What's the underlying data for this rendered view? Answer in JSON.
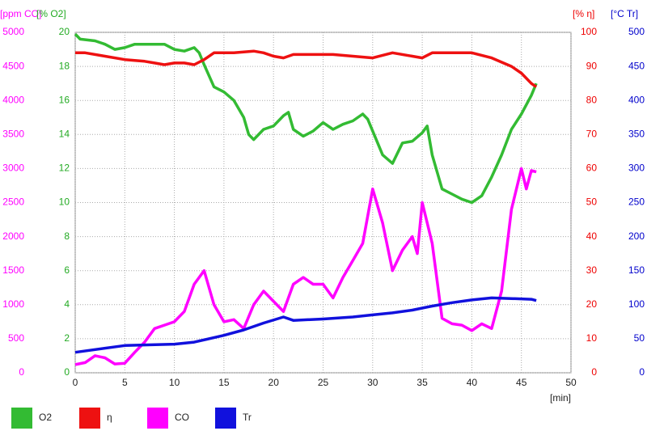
{
  "chart_data": {
    "type": "line",
    "xlabel": "[min]",
    "xlim": [
      0,
      50
    ],
    "xticks": [
      0,
      5,
      10,
      15,
      20,
      25,
      30,
      35,
      40,
      45,
      50
    ],
    "ylabel": "[ppm CO]",
    "ylim": [
      0,
      5000
    ],
    "yticks": [
      0,
      500,
      1000,
      1500,
      2000,
      2500,
      3000,
      3500,
      4000,
      4500,
      5000
    ],
    "ycolor": "#ff00ff",
    "y2label": "[% O2]",
    "y2lim": [
      0,
      20
    ],
    "y2ticks": [
      0,
      2,
      4,
      6,
      8,
      10,
      12,
      14,
      16,
      18,
      20
    ],
    "y2color": "#22aa22",
    "y3label": "[% η]",
    "y3lim": [
      0,
      100
    ],
    "y3ticks": [
      0,
      10,
      20,
      30,
      40,
      50,
      60,
      70,
      80,
      90,
      100
    ],
    "y3color": "#ee0000",
    "y4label": "[°C Tr]",
    "y4lim": [
      0,
      500
    ],
    "y4ticks": [
      0,
      50,
      100,
      150,
      200,
      250,
      300,
      350,
      400,
      450,
      500
    ],
    "y4color": "#0000cc",
    "grid": true,
    "series": [
      {
        "name": "O2",
        "color": "#33bb33",
        "axis": "y2",
        "x": [
          0,
          0.5,
          2,
          3,
          4,
          5,
          6,
          7,
          8,
          9,
          10,
          11,
          12,
          12.5,
          13,
          14,
          15,
          16,
          17,
          17.5,
          18,
          19,
          20,
          21,
          21.5,
          22,
          23,
          24,
          25,
          26,
          27,
          28,
          29,
          29.5,
          30,
          31,
          32,
          33,
          34,
          35,
          35.5,
          36,
          37,
          38,
          39,
          40,
          41,
          42,
          43,
          44,
          45,
          46,
          46.5
        ],
        "values": [
          19.9,
          19.6,
          19.5,
          19.3,
          19.0,
          19.1,
          19.3,
          19.3,
          19.3,
          19.3,
          19.0,
          18.9,
          19.1,
          18.8,
          18.1,
          16.8,
          16.5,
          16.0,
          15.0,
          14.0,
          13.7,
          14.3,
          14.5,
          15.1,
          15.3,
          14.3,
          13.9,
          14.2,
          14.7,
          14.3,
          14.6,
          14.8,
          15.2,
          14.9,
          14.2,
          12.8,
          12.3,
          13.5,
          13.6,
          14.1,
          14.5,
          12.8,
          10.8,
          10.5,
          10.2,
          10.0,
          10.4,
          11.5,
          12.8,
          14.3,
          15.2,
          16.3,
          17.0
        ]
      },
      {
        "name": "η",
        "color": "#ee1111",
        "axis": "y3",
        "x": [
          0,
          1,
          3,
          5,
          7,
          8,
          9,
          10,
          11,
          12,
          13,
          14,
          16,
          18,
          19,
          20,
          21,
          22,
          24,
          26,
          28,
          30,
          32,
          34,
          35,
          36,
          38,
          40,
          42,
          44,
          45,
          46,
          46.5
        ],
        "values": [
          94,
          94,
          93,
          92,
          91.5,
          91,
          90.5,
          91,
          91,
          90.5,
          92,
          94,
          94,
          94.5,
          94,
          93,
          92.5,
          93.5,
          93.5,
          93.5,
          93,
          92.5,
          94,
          93,
          92.5,
          94,
          94,
          94,
          92.5,
          90,
          88,
          85,
          84
        ]
      },
      {
        "name": "CO",
        "color": "#ff00ff",
        "axis": "y",
        "x": [
          0,
          1,
          2,
          3,
          4,
          5,
          6,
          7,
          8,
          9,
          10,
          11,
          12,
          13,
          14,
          15,
          16,
          17,
          18,
          19,
          20,
          21,
          22,
          23,
          24,
          25,
          26,
          27,
          28,
          29,
          30,
          31,
          32,
          33,
          34,
          34.5,
          35,
          36,
          37,
          38,
          39,
          40,
          41,
          42,
          43,
          44,
          45,
          45.5,
          46,
          46.5
        ],
        "values": [
          120,
          150,
          250,
          220,
          130,
          140,
          300,
          450,
          650,
          700,
          750,
          900,
          1300,
          1500,
          1000,
          750,
          780,
          650,
          1000,
          1200,
          1050,
          900,
          1300,
          1400,
          1300,
          1300,
          1100,
          1400,
          1650,
          1900,
          2700,
          2200,
          1500,
          1800,
          2000,
          1750,
          2500,
          1900,
          800,
          720,
          700,
          620,
          720,
          650,
          1200,
          2400,
          3000,
          2700,
          2970,
          2950
        ]
      },
      {
        "name": "Tr",
        "color": "#1111dd",
        "axis": "y4",
        "x": [
          0,
          5,
          10,
          12,
          15,
          17,
          19,
          21,
          22,
          25,
          28,
          30,
          32,
          34,
          36,
          38,
          40,
          42,
          44,
          46,
          46.5
        ],
        "values": [
          30,
          40,
          42,
          45,
          55,
          63,
          73,
          82,
          77,
          79,
          82,
          85,
          88,
          92,
          98,
          103,
          107,
          110,
          109,
          108,
          106
        ]
      }
    ]
  }
}
